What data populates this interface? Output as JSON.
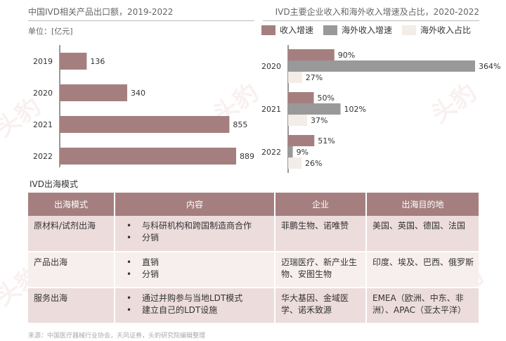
{
  "left_title": "中国IVD相关产品出口额，2019-2022",
  "right_title": "IVD主要企业收入和海外收入增速及占比，2020-2022",
  "unit": "单位：[亿元]",
  "legend": [
    {
      "label": "收入增速",
      "color": "#a57f7f"
    },
    {
      "label": "海外收入增速",
      "color": "#999999"
    },
    {
      "label": "海外收入占比",
      "color": "#f3ece7"
    }
  ],
  "chart_data": [
    {
      "type": "bar",
      "orientation": "horizontal",
      "title": "中国IVD相关产品出口额，2019-2022",
      "unit": "亿元",
      "categories": [
        "2019",
        "2020",
        "2021",
        "2022"
      ],
      "values": [
        136,
        340,
        855,
        889
      ],
      "color": "#a57f7f"
    },
    {
      "type": "bar",
      "orientation": "horizontal",
      "title": "IVD主要企业收入和海外收入增速及占比，2020-2022",
      "categories": [
        "2020",
        "2021",
        "2022"
      ],
      "series": [
        {
          "name": "收入增速",
          "values": [
            90,
            50,
            51
          ],
          "labels": [
            "90%",
            "50%",
            "51%"
          ],
          "color": "#a57f7f"
        },
        {
          "name": "海外收入增速",
          "values": [
            364,
            102,
            9
          ],
          "labels": [
            "364%",
            "102%",
            "9%"
          ],
          "color": "#999999"
        },
        {
          "name": "海外收入占比",
          "values": [
            27,
            37,
            26
          ],
          "labels": [
            "27%",
            "37%",
            "26%"
          ],
          "color": "#f3ece7"
        }
      ]
    }
  ],
  "section_title": "IVD出海模式",
  "table": {
    "headers": [
      "出海模式",
      "内容",
      "企业",
      "出海目的地"
    ],
    "rows": [
      {
        "mode": "原材料/试剂出海",
        "content": [
          "与科研机构和跨国制造商合作",
          "分销"
        ],
        "companies": "菲鹏生物、诺唯赞",
        "destinations": "美国、英国、德国、法国"
      },
      {
        "mode": "产品出海",
        "content": [
          "直销",
          "分销"
        ],
        "companies": "迈瑞医疗、新产业生物、安图生物",
        "destinations": "印度、埃及、巴西、俄罗斯"
      },
      {
        "mode": "服务出海",
        "content": [
          "通过并购参与当地LDT模式",
          "建立自己的LDT设施"
        ],
        "companies": "华大基因、金域医学、诺禾致源",
        "destinations": "EMEA（欧洲、中东、非洲）、APAC（亚太平洋）"
      }
    ]
  },
  "source": "来源：中国医疗器械行业协会，天风证券，头豹研究院编辑整理",
  "watermark": "头豹"
}
